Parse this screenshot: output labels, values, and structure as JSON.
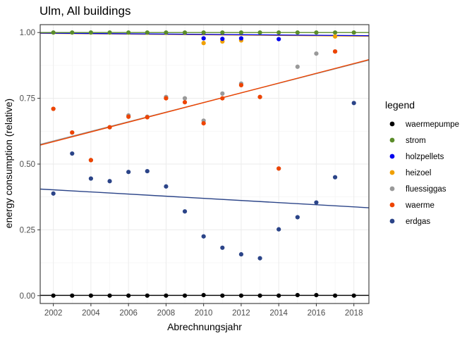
{
  "chart_data": {
    "type": "scatter",
    "title": "Ulm, All buildings",
    "xlabel": "Abrechnungsjahr",
    "ylabel": "energy consumption (relative)",
    "xlim": [
      2001.3,
      2018.8
    ],
    "ylim": [
      -0.03,
      1.03
    ],
    "x_ticks": [
      2002,
      2004,
      2006,
      2008,
      2010,
      2012,
      2014,
      2016,
      2018
    ],
    "x_tick_labels": [
      "2002",
      "2004",
      "2006",
      "2008",
      "2010",
      "2012",
      "2014",
      "2016",
      "2018"
    ],
    "y_ticks": [
      0,
      0.25,
      0.5,
      0.75,
      1.0
    ],
    "y_tick_labels": [
      "0.00",
      "0.25",
      "0.50",
      "0.75",
      "1.00"
    ],
    "grid": true,
    "legend_title": "legend",
    "legend_position": "right",
    "series": [
      {
        "name": "waermepumpe",
        "color": "#000000",
        "x": [
          2002,
          2003,
          2004,
          2005,
          2006,
          2007,
          2008,
          2009,
          2010,
          2011,
          2012,
          2013,
          2014,
          2015,
          2016,
          2017,
          2018
        ],
        "y": [
          0,
          0,
          0,
          0,
          0,
          0,
          0,
          0,
          0.002,
          0,
          0,
          0,
          0,
          0.002,
          0.002,
          0,
          0
        ],
        "trend": [
          [
            2001.3,
            0.001
          ],
          [
            2018.8,
            0.001
          ]
        ]
      },
      {
        "name": "strom",
        "color": "#5b8c2a",
        "x": [
          2002,
          2003,
          2004,
          2005,
          2006,
          2007,
          2008,
          2009,
          2010,
          2011,
          2012,
          2013,
          2014,
          2015,
          2016,
          2017,
          2018
        ],
        "y": [
          1,
          1,
          1,
          1,
          1,
          1,
          1,
          1,
          1,
          1,
          1,
          1,
          1,
          1,
          1,
          1,
          1
        ],
        "trend": [
          [
            2001.3,
            1.0
          ],
          [
            2018.8,
            1.0
          ]
        ]
      },
      {
        "name": "holzpellets",
        "color": "#0000ee",
        "x": [
          2010,
          2011,
          2012,
          2014
        ],
        "y": [
          0.978,
          0.976,
          0.978,
          0.975
        ],
        "trend": [
          [
            2001.3,
            0.998
          ],
          [
            2018.8,
            0.988
          ]
        ]
      },
      {
        "name": "heizoel",
        "color": "#f0a000",
        "x": [
          2010,
          2011,
          2012,
          2017
        ],
        "y": [
          0.96,
          0.966,
          0.97,
          0.985
        ],
        "trend": [
          [
            2001.3,
            0.997
          ],
          [
            2018.8,
            0.986
          ]
        ]
      },
      {
        "name": "fluessiggas",
        "color": "#999999",
        "x": [
          2002,
          2003,
          2004,
          2005,
          2006,
          2007,
          2008,
          2009,
          2010,
          2011,
          2012,
          2013,
          2014,
          2015,
          2016,
          2017
        ],
        "y": [
          0.71,
          0.62,
          0.515,
          0.64,
          0.685,
          0.68,
          0.755,
          0.75,
          0.665,
          0.768,
          0.806,
          0.755,
          0.483,
          0.87,
          0.92,
          0.928
        ],
        "trend": [
          [
            2001.3,
            0.575
          ],
          [
            2018.8,
            0.895
          ]
        ]
      },
      {
        "name": "waerme",
        "color": "#ee4400",
        "x": [
          2002,
          2003,
          2004,
          2005,
          2006,
          2007,
          2008,
          2009,
          2010,
          2011,
          2012,
          2013,
          2014,
          2017
        ],
        "y": [
          0.71,
          0.62,
          0.515,
          0.64,
          0.68,
          0.678,
          0.75,
          0.735,
          0.655,
          0.75,
          0.8,
          0.755,
          0.483,
          0.928
        ],
        "trend": [
          [
            2001.3,
            0.572
          ],
          [
            2018.8,
            0.897
          ]
        ]
      },
      {
        "name": "erdgas",
        "color": "#2b4488",
        "x": [
          2002,
          2003,
          2004,
          2005,
          2006,
          2007,
          2008,
          2009,
          2010,
          2011,
          2012,
          2013,
          2014,
          2015,
          2016,
          2017,
          2018
        ],
        "y": [
          0.388,
          0.54,
          0.445,
          0.435,
          0.47,
          0.473,
          0.415,
          0.32,
          0.225,
          0.182,
          0.157,
          0.142,
          0.252,
          0.298,
          0.354,
          0.45,
          0.732
        ],
        "trend": [
          [
            2001.3,
            0.405
          ],
          [
            2018.8,
            0.334
          ]
        ]
      }
    ]
  }
}
